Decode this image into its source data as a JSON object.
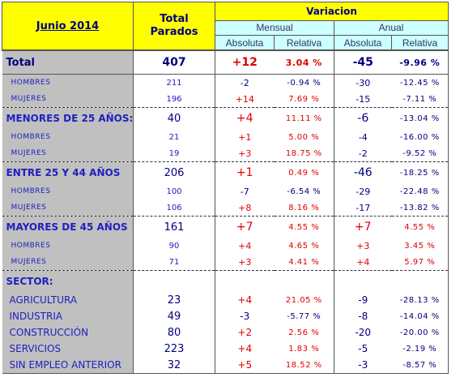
{
  "header": {
    "title": "Junio 2014",
    "total_parados": [
      "Total",
      "Parados"
    ],
    "variacion": "Variacion",
    "mensual": "Mensual",
    "anual": "Anual",
    "absoluta": "Absoluta",
    "relativa": "Relativa"
  },
  "rows": [
    {
      "type": "total",
      "label": "Total",
      "total": "407",
      "m_abs": "+12",
      "m_rel": "3.04 %",
      "a_abs": "-45",
      "a_rel": "-9.96 %"
    },
    {
      "type": "sub",
      "label": "HOMBRES",
      "total": "211",
      "m_abs": "-2",
      "m_rel": "-0.94 %",
      "a_abs": "-30",
      "a_rel": "-12.45 %"
    },
    {
      "type": "sub",
      "label": "MUJERES",
      "total": "196",
      "m_abs": "+14",
      "m_rel": "7.69 %",
      "a_abs": "-15",
      "a_rel": "-7.11 %"
    },
    {
      "type": "main",
      "label": "MENORES DE 25 AÑOS:",
      "total": "40",
      "m_abs": "+4",
      "m_rel": "11.11 %",
      "a_abs": "-6",
      "a_rel": "-13.04 %"
    },
    {
      "type": "sub",
      "label": "HOMBRES",
      "total": "21",
      "m_abs": "+1",
      "m_rel": "5.00 %",
      "a_abs": "-4",
      "a_rel": "-16.00 %"
    },
    {
      "type": "sub",
      "label": "MUJERES",
      "total": "19",
      "m_abs": "+3",
      "m_rel": "18.75 %",
      "a_abs": "-2",
      "a_rel": "-9.52 %"
    },
    {
      "type": "main",
      "label": "ENTRE 25 Y 44 AÑOS",
      "total": "206",
      "m_abs": "+1",
      "m_rel": "0.49 %",
      "a_abs": "-46",
      "a_rel": "-18.25 %"
    },
    {
      "type": "sub",
      "label": "HOMBRES",
      "total": "100",
      "m_abs": "-7",
      "m_rel": "-6.54 %",
      "a_abs": "-29",
      "a_rel": "-22.48 %"
    },
    {
      "type": "sub",
      "label": "MUJERES",
      "total": "106",
      "m_abs": "+8",
      "m_rel": "8.16 %",
      "a_abs": "-17",
      "a_rel": "-13.82 %"
    },
    {
      "type": "main",
      "label": "MAYORES DE 45 AÑOS",
      "total": "161",
      "m_abs": "+7",
      "m_rel": "4.55 %",
      "a_abs": "+7",
      "a_rel": "4.55 %"
    },
    {
      "type": "sub",
      "label": "HOMBRES",
      "total": "90",
      "m_abs": "+4",
      "m_rel": "4.65 %",
      "a_abs": "+3",
      "a_rel": "3.45 %"
    },
    {
      "type": "sub",
      "label": "MUJERES",
      "total": "71",
      "m_abs": "+3",
      "m_rel": "4.41 %",
      "a_abs": "+4",
      "a_rel": "5.97 %"
    },
    {
      "type": "main",
      "label": "SECTOR:",
      "total": "",
      "m_abs": "",
      "m_rel": "",
      "a_abs": "",
      "a_rel": ""
    },
    {
      "type": "sector",
      "label": "AGRICULTURA",
      "total": "23",
      "m_abs": "+4",
      "m_rel": "21.05 %",
      "a_abs": "-9",
      "a_rel": "-28.13 %"
    },
    {
      "type": "sector",
      "label": "INDUSTRIA",
      "total": "49",
      "m_abs": "-3",
      "m_rel": "-5.77 %",
      "a_abs": "-8",
      "a_rel": "-14.04 %"
    },
    {
      "type": "sector",
      "label": "CONSTRUCCIÓN",
      "total": "80",
      "m_abs": "+2",
      "m_rel": "2.56 %",
      "a_abs": "-20",
      "a_rel": "-20.00 %"
    },
    {
      "type": "sector",
      "label": "SERVICIOS",
      "total": "223",
      "m_abs": "+4",
      "m_rel": "1.83 %",
      "a_abs": "-5",
      "a_rel": "-2.19 %"
    },
    {
      "type": "sector",
      "label": "SIN EMPLEO ANTERIOR",
      "total": "32",
      "m_abs": "+5",
      "m_rel": "18.52 %",
      "a_abs": "-3",
      "a_rel": "-8.57 %"
    }
  ],
  "colors": {
    "header_bg": "#ffff00",
    "subheader_bg": "#ccffff",
    "label_col_bg": "#c0c0c0",
    "positive": "#e00000",
    "negative": "#000080"
  }
}
